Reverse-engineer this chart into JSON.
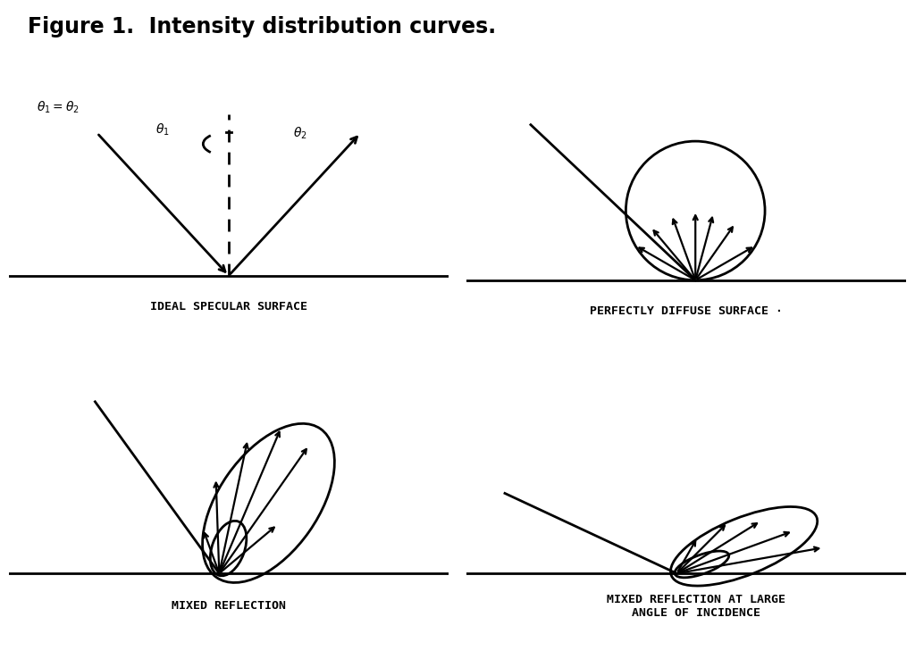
{
  "title": "Figure 1.  Intensity distribution curves.",
  "title_fontsize": 17,
  "title_fontweight": "bold",
  "bg_color": "#ffffff",
  "line_color": "#000000",
  "labels": {
    "top_left": "IDEAL SPECULAR SURFACE",
    "top_right": "PERFECTLY DIFFUSE SURFACE ·",
    "bot_left": "MIXED REFLECTION",
    "bot_right": "MIXED REFLECTION AT LARGE\nANGLE OF INCIDENCE"
  },
  "label_fontsize": 9.5,
  "label_font": "monospace"
}
